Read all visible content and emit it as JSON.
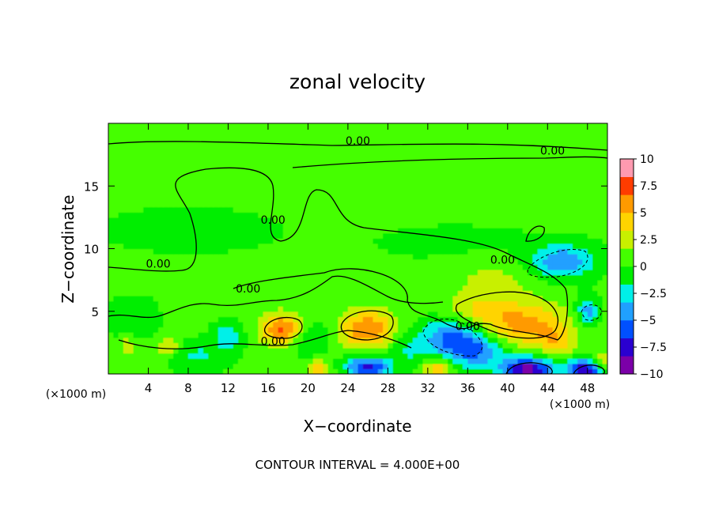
{
  "chart_data": {
    "type": "heatmap",
    "title": "zonal velocity",
    "xlabel": "X−coordinate",
    "ylabel": "Z−coordinate",
    "x_unit_left": "(×1000 m)",
    "x_unit_right": "(×1000 m)",
    "footer": "CONTOUR INTERVAL = 4.000E+00",
    "xlim": [
      0,
      50
    ],
    "ylim": [
      0,
      20
    ],
    "x_ticks": [
      4,
      8,
      12,
      16,
      20,
      24,
      28,
      32,
      36,
      40,
      44,
      48
    ],
    "x_tick_labels": [
      "4",
      "8",
      "12",
      "16",
      "20",
      "24",
      "28",
      "32",
      "36",
      "40",
      "44",
      "48"
    ],
    "y_ticks": [
      5,
      10,
      15
    ],
    "y_tick_labels": [
      "5",
      "10",
      "15"
    ],
    "colorbar": {
      "min": -10,
      "max": 10,
      "ticks": [
        10,
        7.5,
        5,
        2.5,
        0,
        -2.5,
        -5,
        -7.5,
        -10
      ],
      "tick_labels": [
        "10",
        "7.5",
        "5",
        "2.5",
        "0",
        "−2.5",
        "−5",
        "−7.5",
        "−10"
      ],
      "colors": [
        "#7b00a8",
        "#2a00d0",
        "#0050ff",
        "#20a0ff",
        "#00f0e8",
        "#00ee00",
        "#44ff00",
        "#c8f000",
        "#ffd400",
        "#ff9a00",
        "#ff3c00",
        "#ff9ab0"
      ]
    },
    "background_value": 0.3,
    "blobs": [
      {
        "x": 17.5,
        "z": 3.6,
        "sx": 1.5,
        "sz": 0.9,
        "v": 7.2
      },
      {
        "x": 26.0,
        "z": 3.6,
        "sx": 2.0,
        "sz": 1.1,
        "v": 6.3
      },
      {
        "x": 42.0,
        "z": 3.9,
        "sx": 3.0,
        "sz": 1.3,
        "v": 5.2
      },
      {
        "x": 37.0,
        "z": 5.0,
        "sx": 2.5,
        "sz": 1.0,
        "v": 3.0
      },
      {
        "x": 38.5,
        "z": 7.5,
        "sx": 3.0,
        "sz": 1.2,
        "v": 1.8
      },
      {
        "x": 34.5,
        "z": 3.0,
        "sx": 2.2,
        "sz": 1.1,
        "v": -5.5
      },
      {
        "x": 37.0,
        "z": 1.8,
        "sx": 2.0,
        "sz": 0.9,
        "v": -4.8
      },
      {
        "x": 42.0,
        "z": 0.4,
        "sx": 1.8,
        "sz": 0.7,
        "v": -9.5
      },
      {
        "x": 48.0,
        "z": 0.4,
        "sx": 1.4,
        "sz": 0.6,
        "v": -9.0
      },
      {
        "x": 26.0,
        "z": 0.6,
        "sx": 1.5,
        "sz": 0.6,
        "v": -7.5
      },
      {
        "x": 45.5,
        "z": 9.0,
        "sx": 2.2,
        "sz": 0.9,
        "v": -5.2
      },
      {
        "x": 48.0,
        "z": 5.0,
        "sx": 0.8,
        "sz": 0.8,
        "v": -4.5
      },
      {
        "x": 12.0,
        "z": 3.0,
        "sx": 1.0,
        "sz": 0.7,
        "v": -3.5
      },
      {
        "x": 20.0,
        "z": 3.0,
        "sx": 1.5,
        "sz": 1.0,
        "v": -2.6
      },
      {
        "x": 2.5,
        "z": 4.5,
        "sx": 1.5,
        "sz": 1.0,
        "v": -2.0
      },
      {
        "x": 9.0,
        "z": 1.5,
        "sx": 2.0,
        "sz": 0.8,
        "v": -2.2
      },
      {
        "x": 30.0,
        "z": 2.0,
        "sx": 1.5,
        "sz": 1.0,
        "v": -2.0
      },
      {
        "x": 6.0,
        "z": 2.2,
        "sx": 0.8,
        "sz": 0.5,
        "v": 3.6
      },
      {
        "x": 2.0,
        "z": 2.2,
        "sx": 0.6,
        "sz": 0.5,
        "v": 3.2
      },
      {
        "x": 21.0,
        "z": 0.4,
        "sx": 0.8,
        "sz": 0.5,
        "v": 4.5
      },
      {
        "x": 33.0,
        "z": 0.5,
        "sx": 1.0,
        "sz": 0.5,
        "v": 4.8
      },
      {
        "x": 45.0,
        "z": 2.5,
        "sx": 1.2,
        "sz": 0.9,
        "v": 2.8
      },
      {
        "x": 49.5,
        "z": 0.8,
        "sx": 0.8,
        "sz": 0.6,
        "v": 5.0
      },
      {
        "x": 8.0,
        "z": 11.5,
        "sx": 6.0,
        "sz": 1.2,
        "v": -1.0
      },
      {
        "x": 35.0,
        "z": 10.5,
        "sx": 7.0,
        "sz": 1.2,
        "v": -0.6
      },
      {
        "x": 25.0,
        "z": 18.5,
        "sx": 10.0,
        "sz": 1.0,
        "v": 0.8
      }
    ],
    "contour_labels": [
      {
        "text": "0.00",
        "x": 25.0,
        "z": 18.3
      },
      {
        "text": "0.00",
        "x": 44.5,
        "z": 17.5
      },
      {
        "text": "0.00",
        "x": 16.5,
        "z": 12.0
      },
      {
        "text": "0.00",
        "x": 5.0,
        "z": 8.5
      },
      {
        "text": "0.00",
        "x": 14.0,
        "z": 6.5
      },
      {
        "text": "0.00",
        "x": 39.5,
        "z": 8.8
      },
      {
        "text": "0.00",
        "x": 36.0,
        "z": 3.5
      },
      {
        "text": "0.00",
        "x": 16.5,
        "z": 2.3
      }
    ]
  }
}
